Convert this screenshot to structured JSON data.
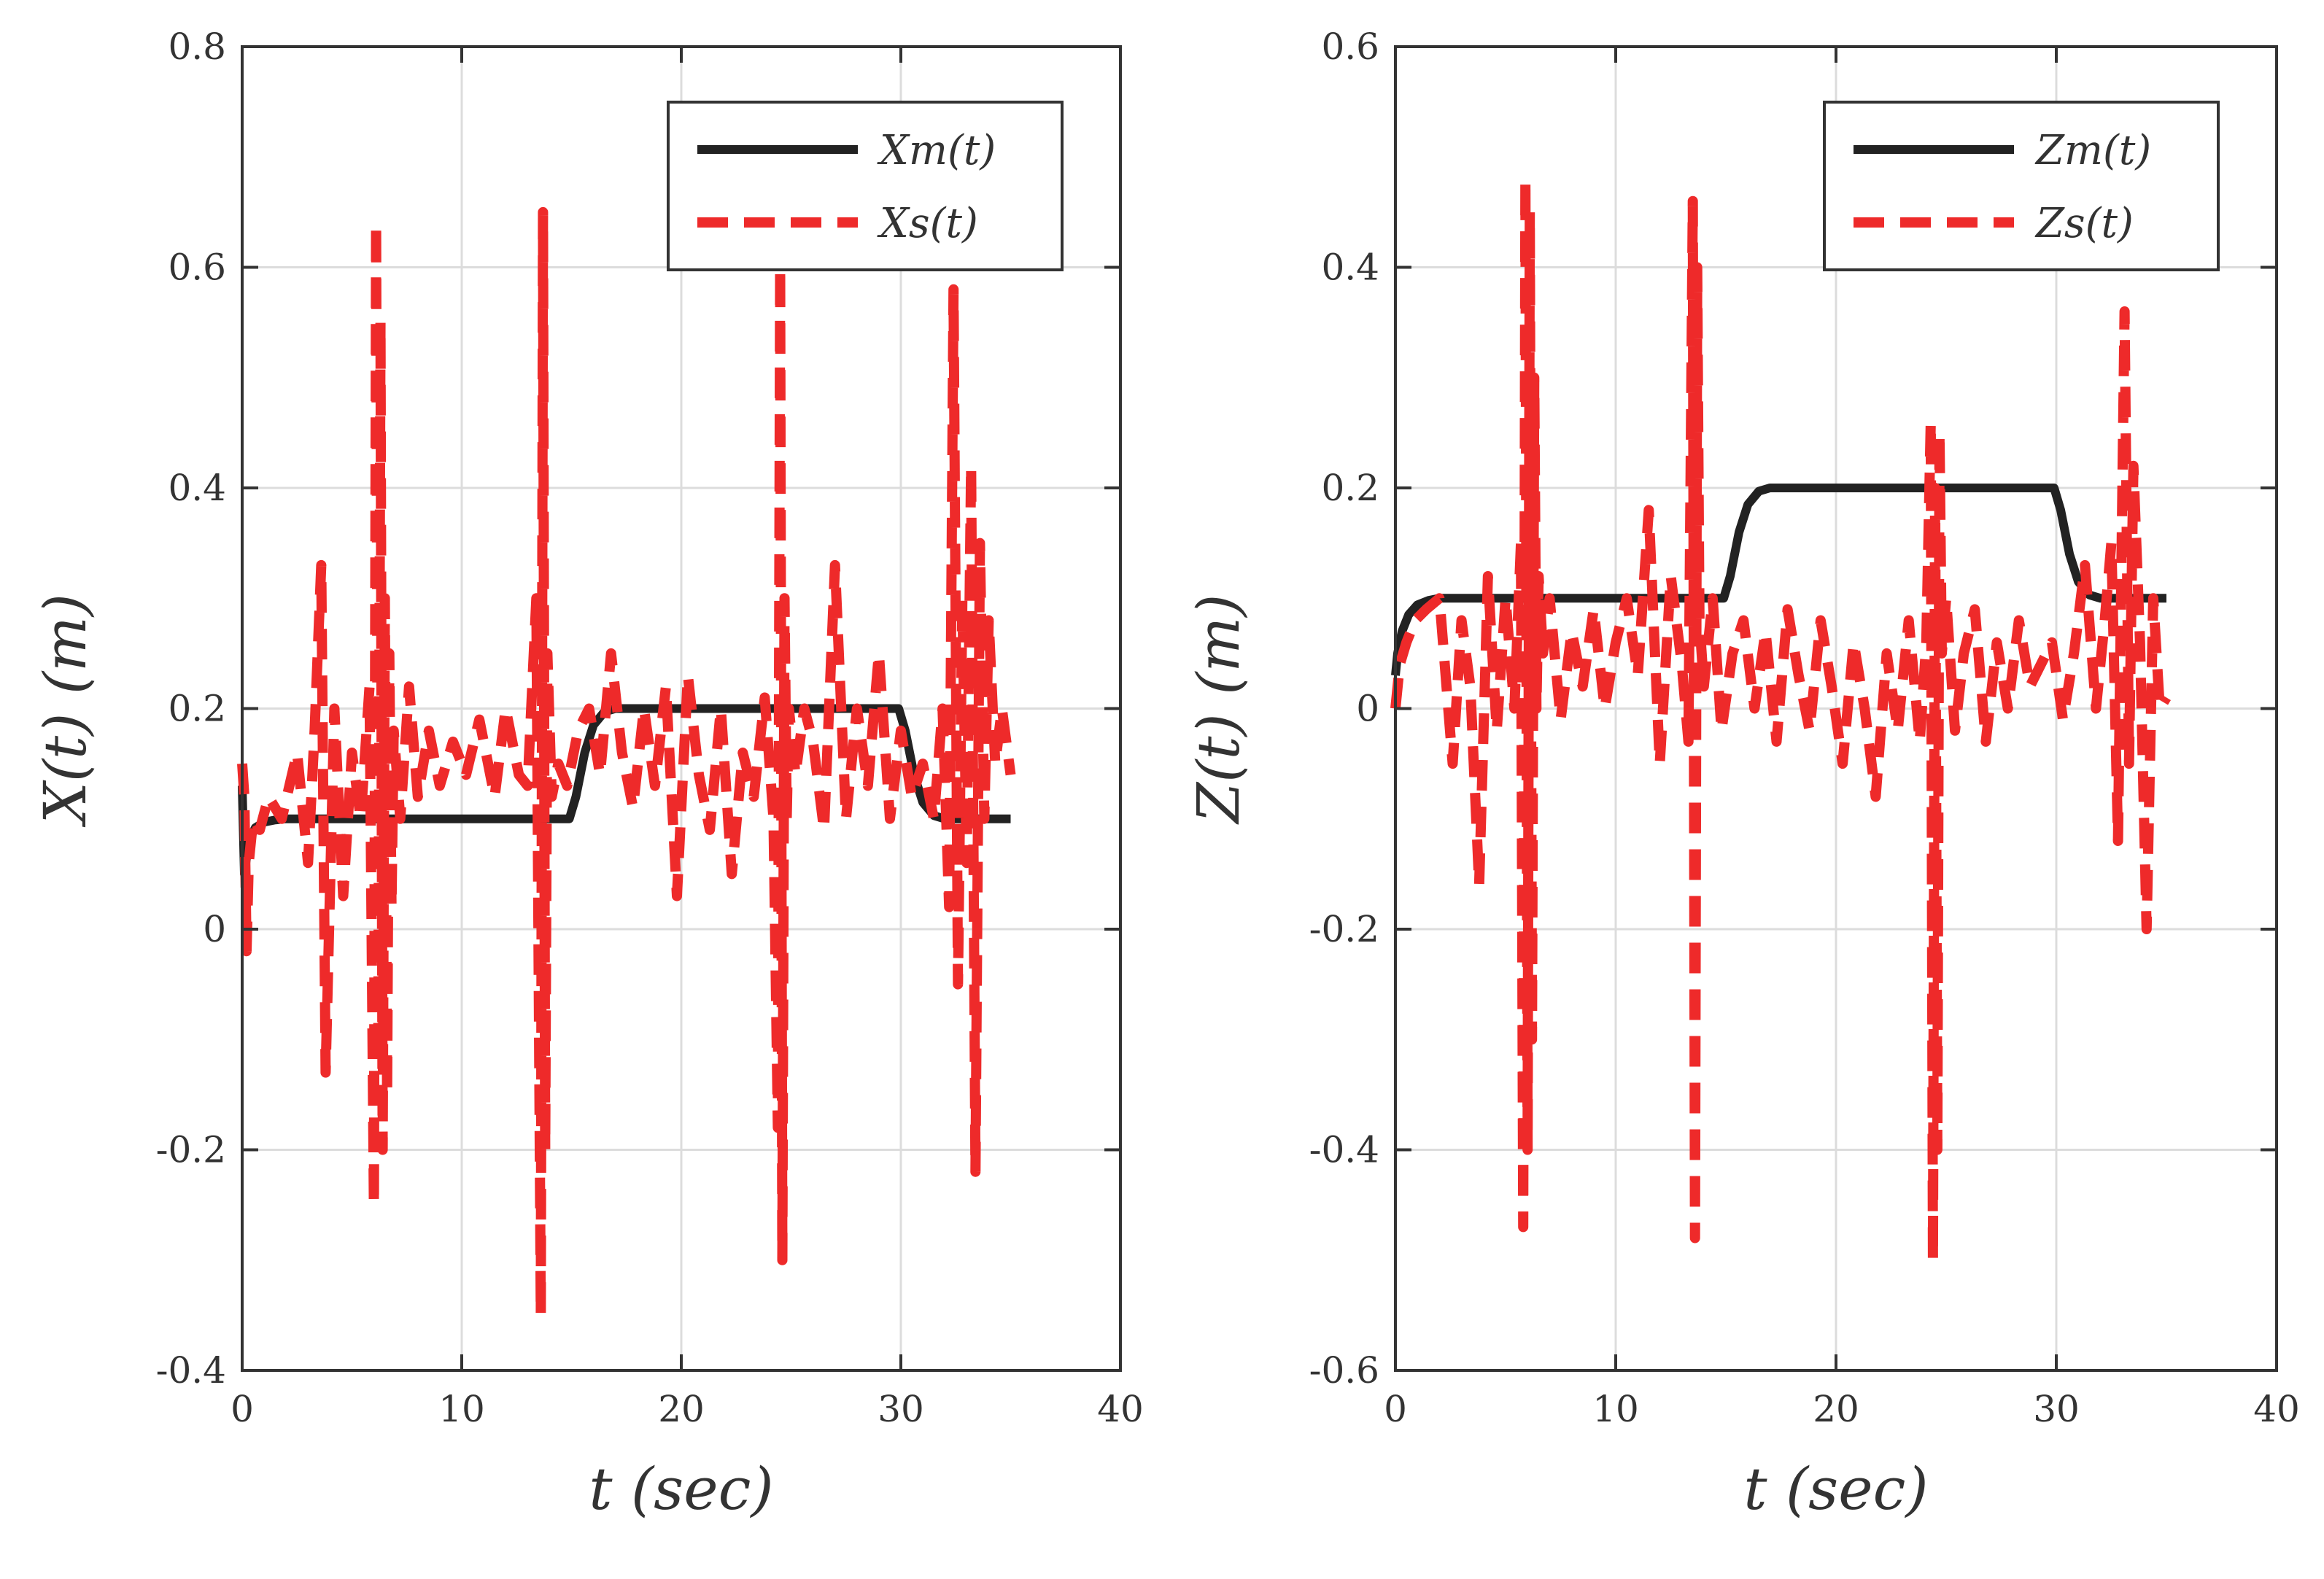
{
  "figure": {
    "description_colors": {
      "master": "#222222",
      "slave": "#ee2a2a",
      "grid": "#dcdcdc",
      "axis": "#333333"
    }
  },
  "chart_data": [
    {
      "type": "line",
      "id": "x-plot",
      "title": "",
      "xlabel": "t (sec)",
      "ylabel": "X(t) (m)",
      "xlim": [
        0,
        40
      ],
      "ylim": [
        -0.4,
        0.8
      ],
      "xticks": [
        0,
        10,
        20,
        30,
        40
      ],
      "yticks": [
        -0.4,
        -0.2,
        0,
        0.2,
        0.4,
        0.6,
        0.8
      ],
      "xtick_labels": [
        "0",
        "10",
        "20",
        "30",
        "40"
      ],
      "ytick_labels": [
        "-0.4",
        "-0.2",
        "0",
        "0.2",
        "0.4",
        "0.6",
        "0.8"
      ],
      "grid": true,
      "legend_position": "top-right",
      "series": [
        {
          "name": "X_m(t)",
          "label": "Xm(t)",
          "style": "solid",
          "color": "#222222",
          "x": [
            0,
            0.1,
            0.3,
            0.6,
            1.0,
            1.5,
            2,
            5,
            10,
            14.9,
            15.2,
            15.6,
            16.0,
            16.5,
            17,
            20,
            25,
            29.9,
            30.2,
            30.6,
            31.0,
            31.5,
            32,
            35
          ],
          "y": [
            0.13,
            0.05,
            0.08,
            0.092,
            0.097,
            0.099,
            0.1,
            0.1,
            0.1,
            0.1,
            0.12,
            0.16,
            0.185,
            0.197,
            0.2,
            0.2,
            0.2,
            0.2,
            0.18,
            0.14,
            0.115,
            0.103,
            0.1,
            0.1
          ]
        },
        {
          "name": "X_s(t)",
          "label": "Xs(t)",
          "style": "dashed",
          "color": "#ee2a2a",
          "x": [
            0,
            0.1,
            0.2,
            0.3,
            0.5,
            0.8,
            1.2,
            1.8,
            2.5,
            3.0,
            3.3,
            3.6,
            3.8,
            4.2,
            4.6,
            5.0,
            5.4,
            5.8,
            6.0,
            6.1,
            6.2,
            6.3,
            6.4,
            6.5,
            6.6,
            6.7,
            6.8,
            6.9,
            7.2,
            7.6,
            8.0,
            8.5,
            9.0,
            9.6,
            10.2,
            10.8,
            11.5,
            12.0,
            12.6,
            13.0,
            13.4,
            13.6,
            13.7,
            13.8,
            13.9,
            14.1,
            14.4,
            14.8,
            15.3,
            15.8,
            16.3,
            16.8,
            17.3,
            17.8,
            18.3,
            18.8,
            19.3,
            19.8,
            20.3,
            20.8,
            21.3,
            21.8,
            22.3,
            22.8,
            23.3,
            23.8,
            24.2,
            24.4,
            24.5,
            24.6,
            24.7,
            24.8,
            24.9,
            25.2,
            25.6,
            26.0,
            26.5,
            27.0,
            27.5,
            28.0,
            28.5,
            29.0,
            29.5,
            30.0,
            30.5,
            31.0,
            31.5,
            31.9,
            32.2,
            32.4,
            32.6,
            32.8,
            33.0,
            33.2,
            33.4,
            33.6,
            33.8,
            34.0,
            34.3,
            34.6,
            35.0
          ],
          "y": [
            0.15,
            0.12,
            -0.02,
            0.06,
            0.1,
            0.09,
            0.12,
            0.1,
            0.16,
            0.06,
            0.18,
            0.33,
            -0.13,
            0.2,
            0.03,
            0.16,
            0.1,
            0.22,
            -0.25,
            0.64,
            -0.1,
            0.55,
            -0.2,
            0.3,
            -0.15,
            0.25,
            0.02,
            0.18,
            0.1,
            0.22,
            0.12,
            0.18,
            0.13,
            0.17,
            0.14,
            0.19,
            0.12,
            0.2,
            0.14,
            0.13,
            0.3,
            -0.35,
            0.65,
            -0.2,
            0.25,
            0.12,
            0.15,
            0.13,
            0.18,
            0.2,
            0.14,
            0.25,
            0.16,
            0.11,
            0.2,
            0.13,
            0.22,
            0.03,
            0.23,
            0.14,
            0.09,
            0.2,
            0.05,
            0.16,
            0.12,
            0.21,
            0.1,
            -0.18,
            0.6,
            -0.3,
            0.3,
            0.1,
            0.2,
            0.14,
            0.2,
            0.17,
            0.09,
            0.33,
            0.1,
            0.2,
            0.13,
            0.25,
            0.1,
            0.18,
            0.12,
            0.15,
            0.1,
            0.2,
            0.02,
            0.58,
            -0.05,
            0.3,
            0.06,
            0.42,
            -0.22,
            0.35,
            0.1,
            0.28,
            0.15,
            0.2,
            0.14
          ]
        }
      ]
    },
    {
      "type": "line",
      "id": "z-plot",
      "title": "",
      "xlabel": "t (sec)",
      "ylabel": "Z(t) (m)",
      "xlim": [
        0,
        40
      ],
      "ylim": [
        -0.6,
        0.6
      ],
      "xticks": [
        0,
        10,
        20,
        30,
        40
      ],
      "yticks": [
        -0.6,
        -0.4,
        -0.2,
        0,
        0.2,
        0.4,
        0.6
      ],
      "xtick_labels": [
        "0",
        "10",
        "20",
        "30",
        "40"
      ],
      "ytick_labels": [
        "-0.6",
        "-0.4",
        "-0.2",
        "0",
        "0.2",
        "0.4",
        "0.6"
      ],
      "grid": true,
      "legend_position": "top-right",
      "series": [
        {
          "name": "Z_m(t)",
          "label": "Zm(t)",
          "style": "solid",
          "color": "#222222",
          "x": [
            0,
            0.1,
            0.3,
            0.6,
            1.0,
            1.5,
            2,
            5,
            10,
            14.9,
            15.2,
            15.6,
            16.0,
            16.5,
            17,
            20,
            25,
            29.9,
            30.2,
            30.6,
            31.0,
            31.5,
            32,
            35
          ],
          "y": [
            0.03,
            0.05,
            0.07,
            0.085,
            0.094,
            0.098,
            0.1,
            0.1,
            0.1,
            0.1,
            0.12,
            0.16,
            0.185,
            0.197,
            0.2,
            0.2,
            0.2,
            0.2,
            0.18,
            0.14,
            0.115,
            0.103,
            0.1,
            0.1
          ]
        },
        {
          "name": "Z_s(t)",
          "label": "Zs(t)",
          "style": "dashed",
          "color": "#ee2a2a",
          "x": [
            0,
            0.2,
            0.5,
            0.9,
            1.4,
            2.0,
            2.6,
            3.0,
            3.4,
            3.8,
            4.2,
            4.6,
            5.0,
            5.4,
            5.7,
            5.8,
            5.9,
            6.0,
            6.1,
            6.2,
            6.3,
            6.4,
            6.5,
            6.7,
            7.0,
            7.5,
            8.0,
            8.5,
            9.0,
            9.5,
            10.0,
            10.5,
            11.0,
            11.5,
            12.0,
            12.5,
            13.0,
            13.3,
            13.5,
            13.6,
            13.7,
            13.8,
            14.0,
            14.4,
            14.8,
            15.3,
            15.8,
            16.3,
            16.8,
            17.3,
            17.8,
            18.3,
            18.8,
            19.3,
            19.8,
            20.3,
            20.8,
            21.3,
            21.8,
            22.3,
            22.8,
            23.3,
            23.8,
            24.1,
            24.3,
            24.4,
            24.5,
            24.6,
            24.7,
            24.8,
            25.0,
            25.4,
            25.8,
            26.3,
            26.8,
            27.3,
            27.8,
            28.3,
            28.8,
            29.3,
            29.8,
            30.3,
            30.8,
            31.3,
            31.8,
            32.2,
            32.5,
            32.8,
            33.1,
            33.3,
            33.5,
            33.8,
            34.1,
            34.4,
            34.7,
            35.0
          ],
          "y": [
            0.0,
            0.04,
            0.06,
            0.08,
            0.09,
            0.1,
            -0.05,
            0.08,
            0.02,
            -0.16,
            0.12,
            -0.02,
            0.1,
            0.0,
            0.15,
            -0.47,
            0.48,
            -0.4,
            0.45,
            -0.3,
            0.3,
            0.0,
            0.12,
            0.05,
            0.1,
            -0.01,
            0.07,
            0.02,
            0.09,
            0.0,
            0.06,
            0.1,
            0.03,
            0.18,
            -0.05,
            0.12,
            0.04,
            -0.03,
            0.46,
            -0.48,
            0.4,
            0.08,
            0.02,
            0.1,
            -0.02,
            0.05,
            0.08,
            0.0,
            0.07,
            -0.03,
            0.09,
            0.03,
            -0.02,
            0.08,
            0.02,
            -0.05,
            0.06,
            0.0,
            -0.08,
            0.05,
            -0.02,
            0.08,
            -0.03,
            0.06,
            0.26,
            -0.5,
            0.2,
            -0.4,
            0.25,
            0.05,
            0.1,
            -0.02,
            0.05,
            0.09,
            -0.03,
            0.06,
            0.0,
            0.08,
            0.02,
            0.04,
            0.06,
            -0.01,
            0.05,
            0.13,
            0.0,
            0.08,
            0.15,
            -0.12,
            0.36,
            -0.05,
            0.22,
            0.06,
            -0.2,
            0.1,
            0.0,
            0.01
          ]
        }
      ]
    }
  ]
}
